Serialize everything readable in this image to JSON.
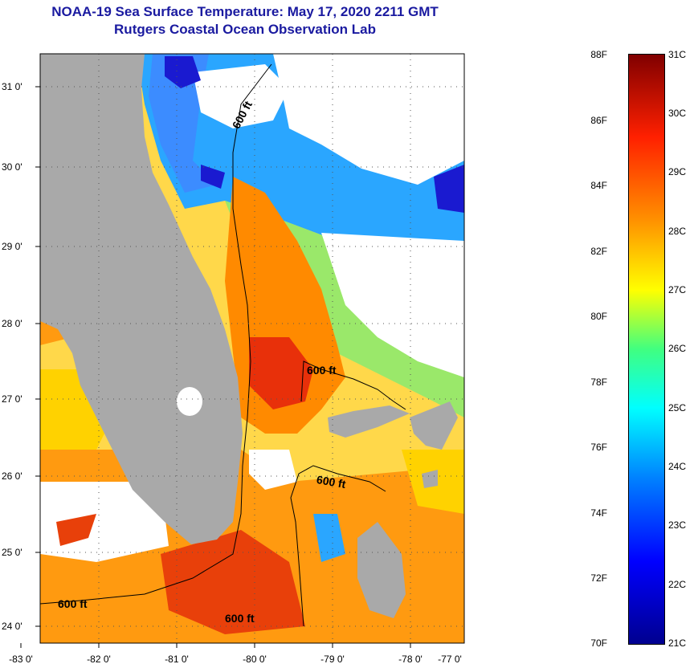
{
  "title": {
    "line1": "NOAA-19 Sea Surface Temperature:  May 17, 2020 2211 GMT",
    "line2": "Rutgers Coastal Ocean Observation Lab"
  },
  "map": {
    "lat_labels": [
      "31 0'",
      "30 0'",
      "29 0'",
      "28 0'",
      "27 0'",
      "26 0'",
      "25 0'",
      "24 0'"
    ],
    "lon_labels": [
      "-83 0'",
      "-82 0'",
      "-81 0'",
      "-80 0'",
      "-79 0'",
      "-78 0'",
      "-77 0'"
    ],
    "contour_label": "600 ft",
    "colors": {
      "land": "#a9a9a9",
      "cloud": "#ffffff",
      "warm": "#ff7a00",
      "hot": "#e8300a",
      "cool": "#2aa6ff",
      "cold": "#1a1ad0",
      "mid": "#ffd200"
    }
  },
  "colorbar": {
    "fahrenheit": [
      "88F",
      "86F",
      "84F",
      "82F",
      "80F",
      "78F",
      "76F",
      "74F",
      "72F",
      "70F"
    ],
    "celsius": [
      "31C",
      "30C",
      "29C",
      "28C",
      "27C",
      "26C",
      "25C",
      "24C",
      "23C",
      "22C",
      "21C"
    ]
  }
}
